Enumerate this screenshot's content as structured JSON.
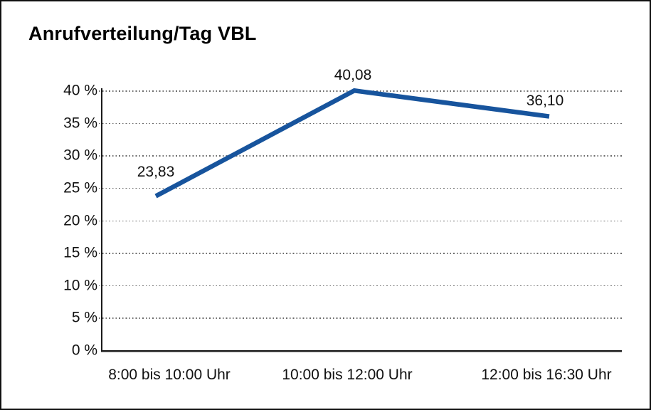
{
  "chart_data": {
    "type": "line",
    "title": "Anrufverteilung/Tag VBL",
    "categories": [
      "8:00 bis 10:00 Uhr",
      "10:00 bis 12:00 Uhr",
      "12:00 bis 16:30 Uhr"
    ],
    "values": [
      23.83,
      40.08,
      36.1
    ],
    "value_labels": [
      "23,83",
      "40,08",
      "36,10"
    ],
    "xlabel": "",
    "ylabel": "",
    "ylim": [
      0,
      40
    ],
    "ytick_step": 5,
    "ytick_labels": [
      "0 %",
      "5 %",
      "10 %",
      "15 %",
      "20 %",
      "25 %",
      "30 %",
      "35 %",
      "40 %"
    ],
    "grid": "horizontal-dotted",
    "legend": "none",
    "line_color": "#17549d",
    "text_color": "#111111"
  }
}
